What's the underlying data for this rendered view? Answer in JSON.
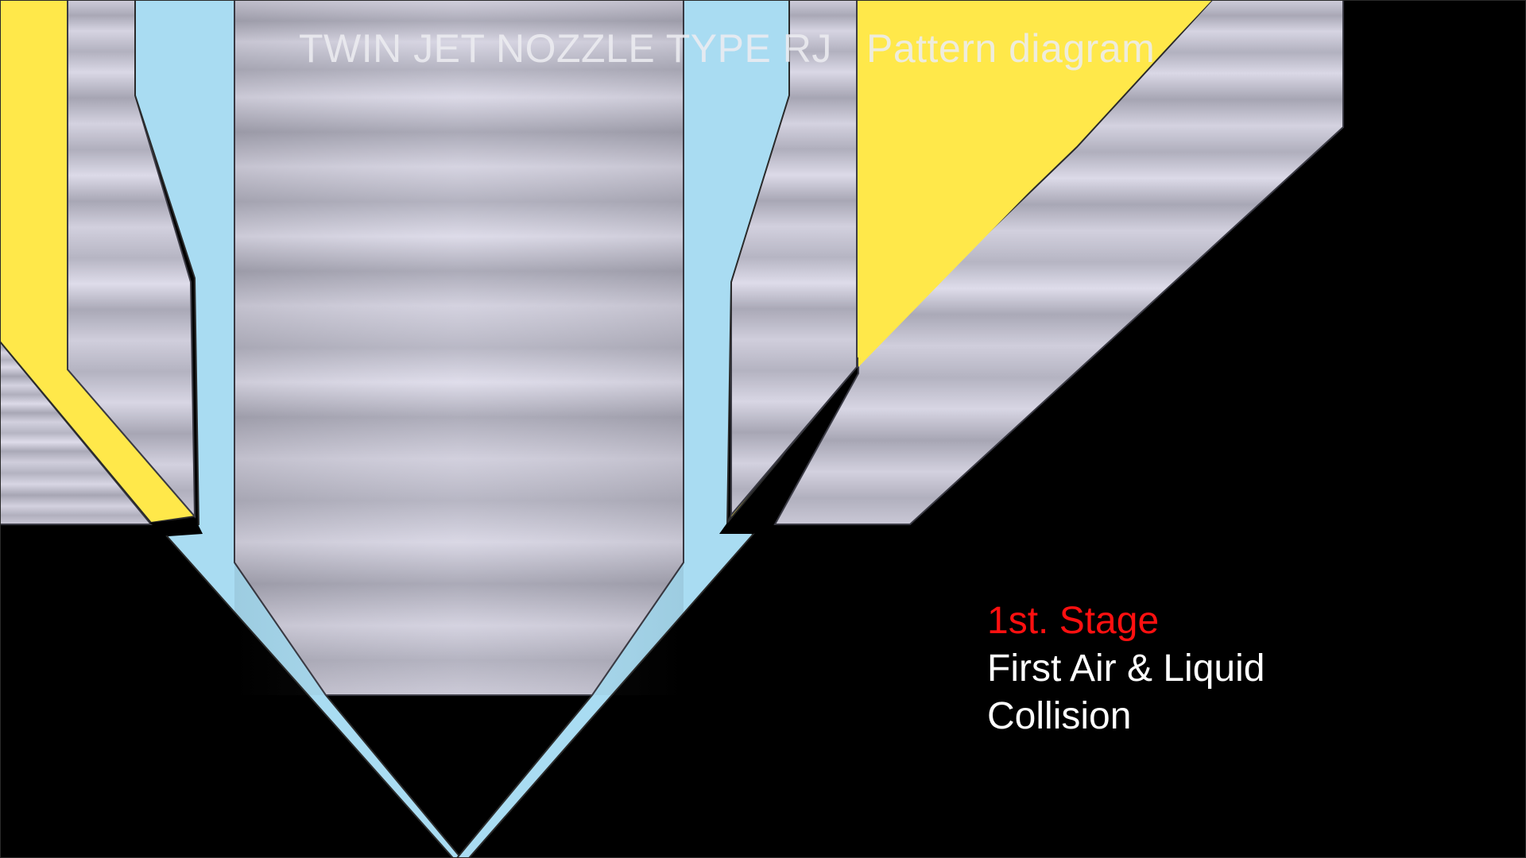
{
  "title": "TWIN JET NOZZLE TYPE RJ   Pattern diagram",
  "caption": {
    "stage": "1st. Stage",
    "line1": "First Air & Liquid",
    "line2": "Collision"
  },
  "colors": {
    "background": "#000000",
    "air_channel": "#ffe84a",
    "liquid_channel": "#a9dcf2",
    "metal": "#bfbdcc",
    "stage_text": "#ff1010",
    "caption_text": "#ffffff"
  }
}
